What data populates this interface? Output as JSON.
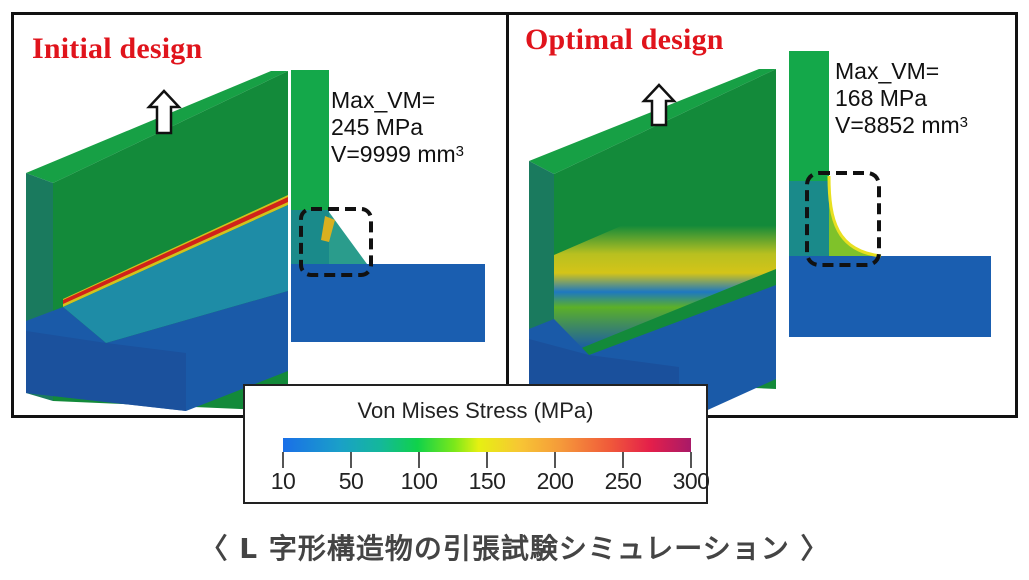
{
  "figure": {
    "caption": "〈 L 字形構造物の引張試験シミュレーション 〉",
    "colors": {
      "title_red": "#e0141c",
      "model_green": "#12963c",
      "model_blue": "#1a5aa8",
      "stress_red": "#d81e1e",
      "frame": "#111111"
    }
  },
  "panels": [
    {
      "id": "initial",
      "title": "Initial design",
      "max_vm_label": "Max_VM=",
      "max_vm_value": "245 MPa",
      "volume_label": "V=9999 mm",
      "volume_exp": "3",
      "load_arrow_icon": "up-arrow-icon",
      "highlight": "dashed rounded box around 45° chamfered corner"
    },
    {
      "id": "optimal",
      "title": "Optimal design",
      "max_vm_label": "Max_VM=",
      "max_vm_value": "168 MPa",
      "volume_label": "V=8852 mm",
      "volume_exp": "3",
      "load_arrow_icon": "up-arrow-icon",
      "highlight": "dashed rounded box around curved fillet corner"
    }
  ],
  "legend": {
    "title": "Von Mises Stress (MPa)",
    "ticks": [
      "10",
      "50",
      "100",
      "150",
      "200",
      "250",
      "300"
    ],
    "range": [
      10,
      300
    ]
  }
}
